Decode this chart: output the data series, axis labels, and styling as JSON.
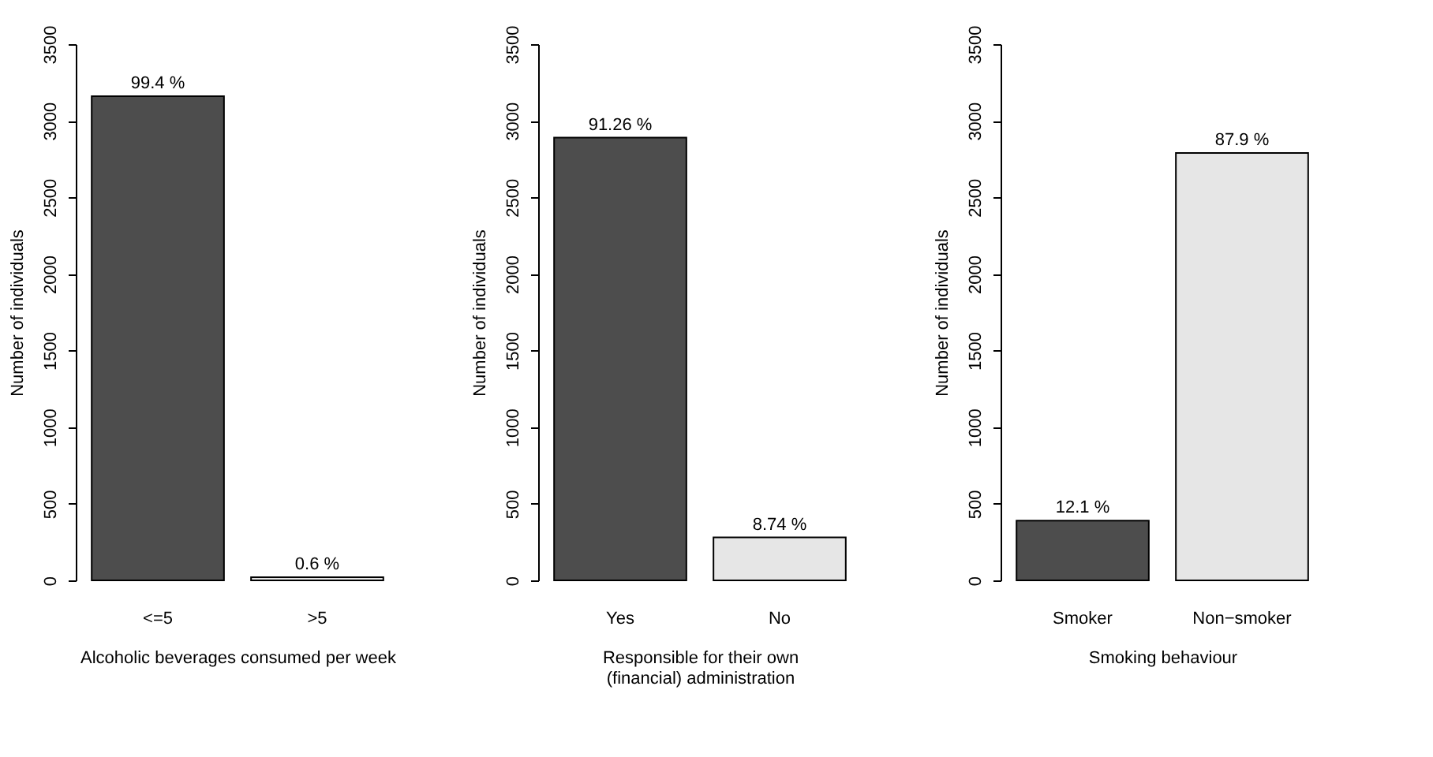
{
  "chart_data": [
    {
      "type": "bar",
      "categories": [
        "<=5",
        ">5"
      ],
      "values": [
        3160,
        20
      ],
      "colors": [
        "#4d4d4d",
        "#e6e6e6"
      ],
      "annotations": [
        {
          "text": "99.4 %",
          "x": "<=5",
          "y": 3160
        },
        {
          "text": "0.6 %",
          "x": ">5",
          "y": 20
        }
      ],
      "xlabel": "Alcoholic beverages consumed per week",
      "ylabel": "Number of individuals",
      "ylim": [
        0,
        3500
      ],
      "yticks": [
        0,
        500,
        1000,
        1500,
        2000,
        2500,
        3000,
        3500
      ],
      "grid": false
    },
    {
      "type": "bar",
      "categories": [
        "Yes",
        "No"
      ],
      "values": [
        2890,
        280
      ],
      "colors": [
        "#4d4d4d",
        "#e6e6e6"
      ],
      "annotations": [
        {
          "text": "91.26 %",
          "x": "Yes",
          "y": 2890
        },
        {
          "text": "8.74 %",
          "x": "No",
          "y": 280
        }
      ],
      "xlabel": "Responsible for their own\n(financial) administration",
      "ylabel": "Number of individuals",
      "ylim": [
        0,
        3500
      ],
      "yticks": [
        0,
        500,
        1000,
        1500,
        2000,
        2500,
        3000,
        3500
      ],
      "grid": false
    },
    {
      "type": "bar",
      "categories": [
        "Smoker",
        "Non−smoker"
      ],
      "values": [
        390,
        2790
      ],
      "colors": [
        "#4d4d4d",
        "#e6e6e6"
      ],
      "annotations": [
        {
          "text": "12.1 %",
          "x": "Smoker",
          "y": 390
        },
        {
          "text": "87.9 %",
          "x": "Non−smoker",
          "y": 2790
        }
      ],
      "xlabel": "Smoking behaviour",
      "ylabel": "Number of individuals",
      "ylim": [
        0,
        3500
      ],
      "yticks": [
        0,
        500,
        1000,
        1500,
        2000,
        2500,
        3000,
        3500
      ],
      "grid": false
    }
  ]
}
